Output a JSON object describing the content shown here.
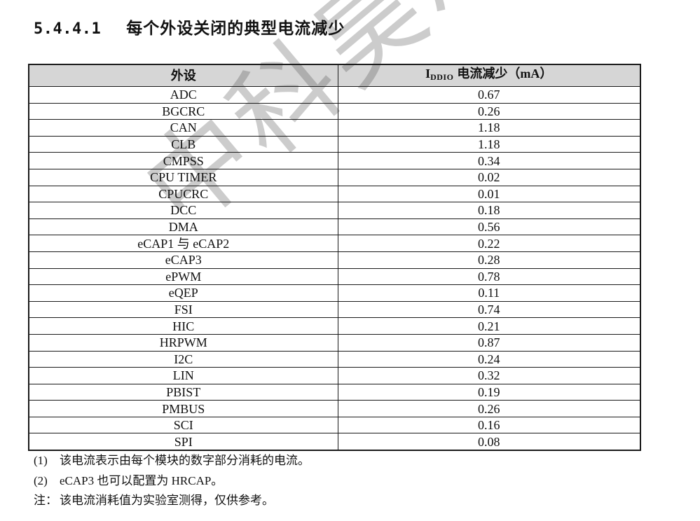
{
  "heading": {
    "number": "5.4.4.1",
    "title": "每个外设关闭的典型电流减少"
  },
  "watermark": {
    "text": "中科昊芯"
  },
  "table": {
    "header": {
      "peripheral": "外设",
      "current_symbol": "I",
      "current_symbol_sub": "DDIO",
      "current_label": "电流减少（mA）"
    },
    "rows": [
      {
        "peripheral": "ADC",
        "value": "0.67"
      },
      {
        "peripheral": "BGCRC",
        "value": "0.26"
      },
      {
        "peripheral": "CAN",
        "value": "1.18"
      },
      {
        "peripheral": "CLB",
        "value": "1.18"
      },
      {
        "peripheral": "CMPSS",
        "value": "0.34"
      },
      {
        "peripheral": "CPU TIMER",
        "value": "0.02"
      },
      {
        "peripheral": "CPUCRC",
        "value": "0.01"
      },
      {
        "peripheral": "DCC",
        "value": "0.18"
      },
      {
        "peripheral": "DMA",
        "value": "0.56"
      },
      {
        "peripheral": "eCAP1 与 eCAP2",
        "value": "0.22"
      },
      {
        "peripheral": "eCAP3",
        "value": "0.28"
      },
      {
        "peripheral": "ePWM",
        "value": "0.78"
      },
      {
        "peripheral": "eQEP",
        "value": "0.11"
      },
      {
        "peripheral": "FSI",
        "value": "0.74"
      },
      {
        "peripheral": "HIC",
        "value": "0.21"
      },
      {
        "peripheral": "HRPWM",
        "value": "0.87"
      },
      {
        "peripheral": "I2C",
        "value": "0.24"
      },
      {
        "peripheral": "LIN",
        "value": "0.32"
      },
      {
        "peripheral": "PBIST",
        "value": "0.19"
      },
      {
        "peripheral": "PMBUS",
        "value": "0.26"
      },
      {
        "peripheral": "SCI",
        "value": "0.16"
      },
      {
        "peripheral": "SPI",
        "value": "0.08"
      }
    ]
  },
  "footnotes": [
    {
      "label": "(1)",
      "text": "该电流表示由每个模块的数字部分消耗的电流。"
    },
    {
      "label": "(2)",
      "text": "eCAP3 也可以配置为 HRCAP。"
    },
    {
      "label": "注：",
      "text": "该电流消耗值为实验室测得，仅供参考。"
    }
  ],
  "colors": {
    "header_background": "#d6d6d6",
    "table_border": "#1a1a1a",
    "watermark": "#c7c7c7",
    "text": "#111111",
    "page_background": "#ffffff"
  }
}
